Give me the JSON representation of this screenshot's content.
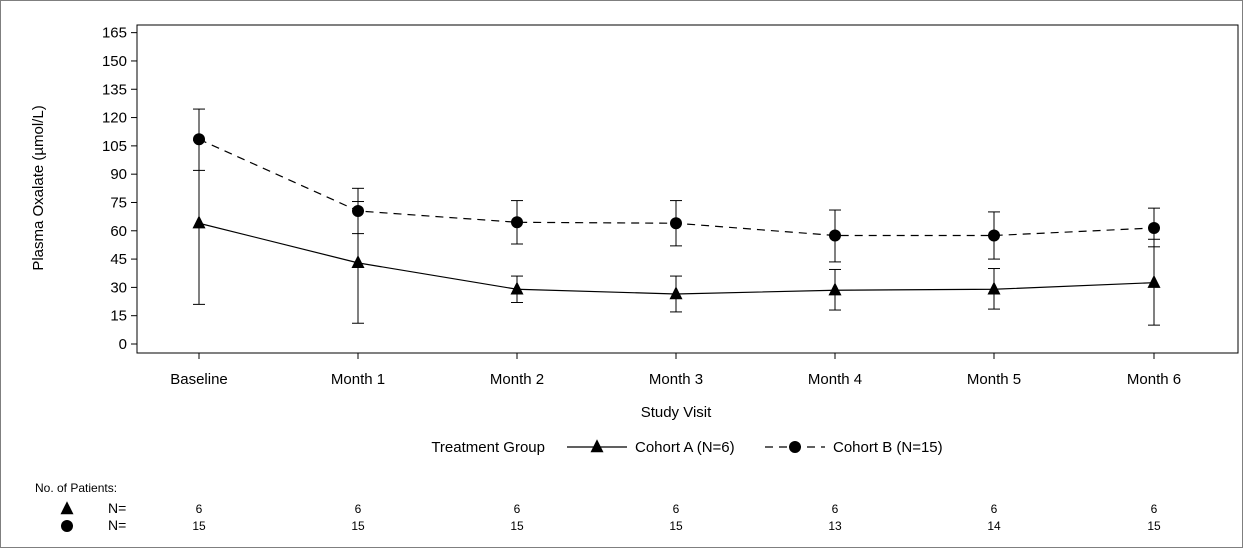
{
  "chart_data": {
    "type": "line",
    "xlabel": "Study Visit",
    "ylabel": "Plasma Oxalate (µmol/L)",
    "ylim": [
      0,
      165
    ],
    "yticks": [
      0,
      15,
      30,
      45,
      60,
      75,
      90,
      105,
      120,
      135,
      150,
      165
    ],
    "categories": [
      "Baseline",
      "Month 1",
      "Month 2",
      "Month 3",
      "Month 4",
      "Month 5",
      "Month 6"
    ],
    "grid": false,
    "legend": {
      "position": "bottom",
      "title": "Treatment Group"
    },
    "series": [
      {
        "name": "Cohort A (N=6)",
        "marker": "triangle",
        "line_style": "solid",
        "values": [
          64,
          43,
          29,
          26.5,
          28.5,
          29,
          32.5
        ],
        "error_low": [
          21,
          11,
          22,
          17,
          18,
          18.5,
          10
        ],
        "error_high": [
          108,
          75.5,
          36,
          36,
          39.5,
          40,
          55.5
        ]
      },
      {
        "name": "Cohort B (N=15)",
        "marker": "circle",
        "line_style": "dashed",
        "values": [
          108.5,
          70.5,
          64.5,
          64,
          57.5,
          57.5,
          61.5
        ],
        "error_low": [
          92,
          58.5,
          53,
          52,
          43.5,
          45,
          51.5
        ],
        "error_high": [
          124.5,
          82.5,
          76,
          76,
          71,
          70,
          72
        ]
      }
    ],
    "patients_table": {
      "title": "No. of Patients:",
      "row_label": "N=",
      "rows": [
        {
          "marker": "triangle",
          "counts": [
            "6",
            "6",
            "6",
            "6",
            "6",
            "6",
            "6"
          ]
        },
        {
          "marker": "circle",
          "counts": [
            "15",
            "15",
            "15",
            "15",
            "13",
            "14",
            "15"
          ]
        }
      ]
    }
  }
}
